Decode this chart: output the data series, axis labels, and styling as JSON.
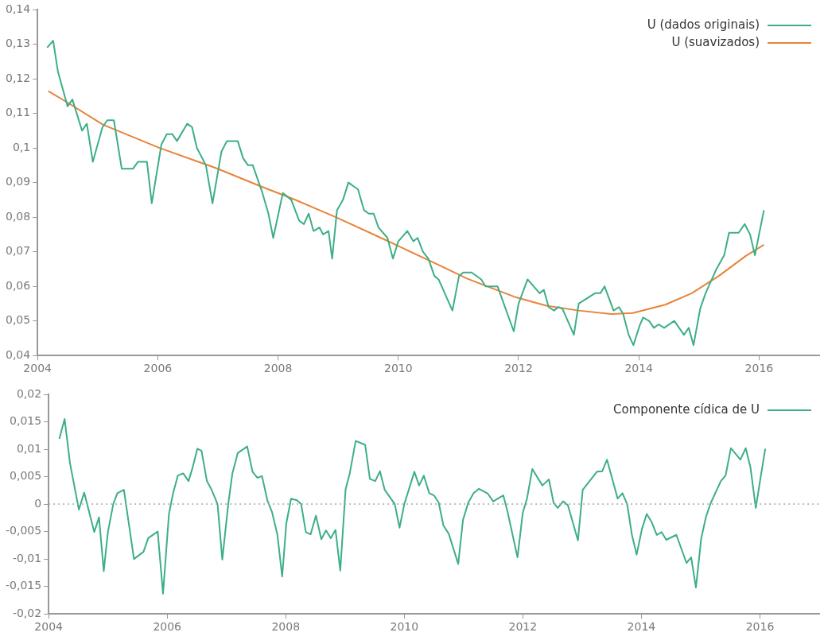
{
  "chart_data": [
    {
      "type": "line",
      "legend": "top right",
      "grid": false,
      "marker": "none",
      "line_style": "solid",
      "xlim": [
        2004,
        2017
      ],
      "xticks": [
        2004,
        2006,
        2008,
        2010,
        2012,
        2014,
        2016
      ],
      "ylim": [
        0.04,
        0.14
      ],
      "yticks": [
        {
          "value": 0.04,
          "label": "0,04"
        },
        {
          "value": 0.05,
          "label": "0,05"
        },
        {
          "value": 0.06,
          "label": "0,06"
        },
        {
          "value": 0.07,
          "label": "0,07"
        },
        {
          "value": 0.08,
          "label": "0,08"
        },
        {
          "value": 0.09,
          "label": "0,09"
        },
        {
          "value": 0.1,
          "label": "0,1"
        },
        {
          "value": 0.11,
          "label": "0,11"
        },
        {
          "value": 0.12,
          "label": "0,12"
        },
        {
          "value": 0.13,
          "label": "0,13"
        },
        {
          "value": 0.14,
          "label": "0,14"
        }
      ],
      "series": [
        {
          "name": "U (dados originais)",
          "color": "#3dae88",
          "x": [
            2004.16,
            2004.26,
            2004.34,
            2004.5,
            2004.58,
            2004.74,
            2004.82,
            2004.92,
            2005.08,
            2005.16,
            2005.27,
            2005.4,
            2005.59,
            2005.67,
            2005.82,
            2005.9,
            2006.06,
            2006.15,
            2006.24,
            2006.32,
            2006.49,
            2006.57,
            2006.65,
            2006.8,
            2006.91,
            2007.06,
            2007.15,
            2007.33,
            2007.42,
            2007.5,
            2007.58,
            2007.74,
            2007.84,
            2007.92,
            2008.08,
            2008.22,
            2008.35,
            2008.43,
            2008.51,
            2008.59,
            2008.69,
            2008.75,
            2008.84,
            2008.9,
            2008.98,
            2009.08,
            2009.17,
            2009.33,
            2009.43,
            2009.51,
            2009.59,
            2009.67,
            2009.82,
            2009.91,
            2010.0,
            2010.15,
            2010.25,
            2010.32,
            2010.41,
            2010.5,
            2010.6,
            2010.67,
            2010.9,
            2011.01,
            2011.08,
            2011.22,
            2011.38,
            2011.45,
            2011.65,
            2011.92,
            2012.0,
            2012.15,
            2012.35,
            2012.42,
            2012.5,
            2012.59,
            2012.66,
            2012.73,
            2012.92,
            2013.0,
            2013.27,
            2013.36,
            2013.43,
            2013.58,
            2013.67,
            2013.74,
            2013.83,
            2013.91,
            2014.01,
            2014.07,
            2014.17,
            2014.25,
            2014.33,
            2014.42,
            2014.59,
            2014.75,
            2014.83,
            2014.91,
            2015.02,
            2015.11,
            2015.29,
            2015.42,
            2015.5,
            2015.66,
            2015.76,
            2015.85,
            2015.93,
            2016.08
          ],
          "values": [
            0.129,
            0.131,
            0.122,
            0.112,
            0.114,
            0.105,
            0.107,
            0.096,
            0.106,
            0.108,
            0.108,
            0.094,
            0.094,
            0.096,
            0.096,
            0.084,
            0.101,
            0.104,
            0.104,
            0.102,
            0.107,
            0.106,
            0.1,
            0.095,
            0.084,
            0.099,
            0.102,
            0.102,
            0.097,
            0.095,
            0.095,
            0.087,
            0.081,
            0.074,
            0.087,
            0.085,
            0.079,
            0.078,
            0.081,
            0.076,
            0.077,
            0.075,
            0.076,
            0.068,
            0.082,
            0.085,
            0.09,
            0.088,
            0.082,
            0.081,
            0.081,
            0.077,
            0.074,
            0.068,
            0.073,
            0.076,
            0.073,
            0.074,
            0.07,
            0.068,
            0.063,
            0.062,
            0.053,
            0.063,
            0.064,
            0.064,
            0.062,
            0.06,
            0.06,
            0.047,
            0.055,
            0.062,
            0.058,
            0.059,
            0.054,
            0.053,
            0.054,
            0.0535,
            0.046,
            0.055,
            0.058,
            0.058,
            0.06,
            0.053,
            0.054,
            0.052,
            0.046,
            0.043,
            0.0485,
            0.051,
            0.05,
            0.048,
            0.049,
            0.048,
            0.05,
            0.046,
            0.048,
            0.043,
            0.0535,
            0.058,
            0.065,
            0.069,
            0.0755,
            0.0755,
            0.078,
            0.075,
            0.069,
            0.082
          ]
        },
        {
          "name": "U (suavizados)",
          "color": "#e8833a",
          "x": [
            2004.18,
            2004.51,
            2005.09,
            2006.03,
            2006.98,
            2007.7,
            2008.26,
            2008.96,
            2009.8,
            2010.57,
            2011.15,
            2011.96,
            2012.46,
            2013.0,
            2013.54,
            2013.9,
            2014.44,
            2014.88,
            2015.33,
            2015.78,
            2016.08
          ],
          "values": [
            0.1164,
            0.113,
            0.1067,
            0.1,
            0.0941,
            0.089,
            0.0852,
            0.08,
            0.0733,
            0.067,
            0.0622,
            0.0568,
            0.0544,
            0.053,
            0.052,
            0.0523,
            0.0547,
            0.058,
            0.063,
            0.0688,
            0.072
          ]
        }
      ]
    },
    {
      "type": "line",
      "legend": "top right",
      "grid": false,
      "marker": "none",
      "line_style": "solid",
      "xlim": [
        2004,
        2017
      ],
      "xticks": [
        2004,
        2006,
        2008,
        2010,
        2012,
        2014,
        2016
      ],
      "ylim": [
        -0.02,
        0.02
      ],
      "yticks": [
        {
          "value": -0.02,
          "label": "-0,02"
        },
        {
          "value": -0.015,
          "label": "-0,015"
        },
        {
          "value": -0.01,
          "label": "-0,01"
        },
        {
          "value": -0.005,
          "label": "-0,005"
        },
        0,
        {
          "value": 0.005,
          "label": "0,005"
        },
        {
          "value": 0.01,
          "label": "0,01"
        },
        {
          "value": 0.015,
          "label": "0,015"
        },
        {
          "value": 0.02,
          "label": "0,02"
        }
      ],
      "ref_lines": [
        {
          "axis": "y",
          "value": 0,
          "color": "#a6a6a6",
          "line_style": "dotted"
        }
      ],
      "series": [
        {
          "name": "Componente cídica de U",
          "color": "#3dae88",
          "x": [
            2004.18,
            2004.27,
            2004.36,
            2004.51,
            2004.6,
            2004.77,
            2004.85,
            2004.93,
            2005.0,
            2005.09,
            2005.16,
            2005.27,
            2005.44,
            2005.6,
            2005.68,
            2005.84,
            2005.93,
            2006.03,
            2006.1,
            2006.18,
            2006.27,
            2006.36,
            2006.43,
            2006.51,
            2006.58,
            2006.67,
            2006.75,
            2006.85,
            2006.93,
            2007.03,
            2007.1,
            2007.19,
            2007.35,
            2007.44,
            2007.52,
            2007.6,
            2007.69,
            2007.77,
            2007.86,
            2007.94,
            2008.01,
            2008.09,
            2008.19,
            2008.26,
            2008.34,
            2008.42,
            2008.51,
            2008.6,
            2008.68,
            2008.76,
            2008.84,
            2008.92,
            2009.01,
            2009.08,
            2009.18,
            2009.34,
            2009.42,
            2009.51,
            2009.59,
            2009.67,
            2009.84,
            2009.92,
            2010.0,
            2010.17,
            2010.25,
            2010.33,
            2010.42,
            2010.5,
            2010.58,
            2010.66,
            2010.75,
            2010.91,
            2010.99,
            2011.08,
            2011.17,
            2011.26,
            2011.41,
            2011.5,
            2011.67,
            2011.74,
            2011.91,
            2012.0,
            2012.07,
            2012.16,
            2012.33,
            2012.44,
            2012.52,
            2012.59,
            2012.68,
            2012.76,
            2012.93,
            2013.01,
            2013.25,
            2013.34,
            2013.42,
            2013.6,
            2013.68,
            2013.76,
            2013.84,
            2013.92,
            2014.01,
            2014.09,
            2014.17,
            2014.26,
            2014.34,
            2014.42,
            2014.59,
            2014.76,
            2014.84,
            2014.92,
            2015.01,
            2015.09,
            2015.17,
            2015.34,
            2015.42,
            2015.51,
            2015.67,
            2015.76,
            2015.84,
            2015.93,
            2016.01,
            2016.09
          ],
          "values": [
            0.0119,
            0.0155,
            0.0075,
            -0.001,
            0.0021,
            -0.0051,
            -0.0024,
            -0.0122,
            -0.0051,
            0,
            0.002,
            0.0026,
            -0.01,
            -0.0087,
            -0.0062,
            -0.005,
            -0.0163,
            -0.0018,
            0.002,
            0.0052,
            0.0056,
            0.0042,
            0.0067,
            0.0101,
            0.0097,
            0.0042,
            0.0026,
            0,
            -0.0101,
            0,
            0.0056,
            0.0093,
            0.0105,
            0.0059,
            0.0048,
            0.0051,
            0.0007,
            -0.0015,
            -0.0056,
            -0.0132,
            -0.0035,
            0.001,
            0.0007,
            0,
            -0.0051,
            -0.0055,
            -0.0021,
            -0.0064,
            -0.0048,
            -0.0062,
            -0.0047,
            -0.0121,
            0.0027,
            0.0056,
            0.0115,
            0.0108,
            0.0046,
            0.0042,
            0.006,
            0.0026,
            0,
            -0.0043,
            0,
            0.0059,
            0.0034,
            0.0052,
            0.002,
            0.0016,
            0.0003,
            -0.0039,
            -0.0054,
            -0.0109,
            -0.0029,
            0.0003,
            0.002,
            0.0028,
            0.0019,
            0.0005,
            0.0016,
            -0.0013,
            -0.0097,
            -0.0015,
            0.001,
            0.0064,
            0.0034,
            0.0045,
            0.0002,
            -0.0007,
            0.0005,
            -0.0002,
            -0.0066,
            0.0026,
            0.0059,
            0.006,
            0.0081,
            0.001,
            0.002,
            0,
            -0.0056,
            -0.0092,
            -0.0045,
            -0.0018,
            -0.0032,
            -0.0056,
            -0.0051,
            -0.0065,
            -0.0056,
            -0.0107,
            -0.0097,
            -0.0152,
            -0.0062,
            -0.0023,
            0.0002,
            0.0042,
            0.0052,
            0.0102,
            0.0081,
            0.0102,
            0.0067,
            -0.0007,
            0.0048,
            0.0101
          ]
        }
      ]
    }
  ]
}
